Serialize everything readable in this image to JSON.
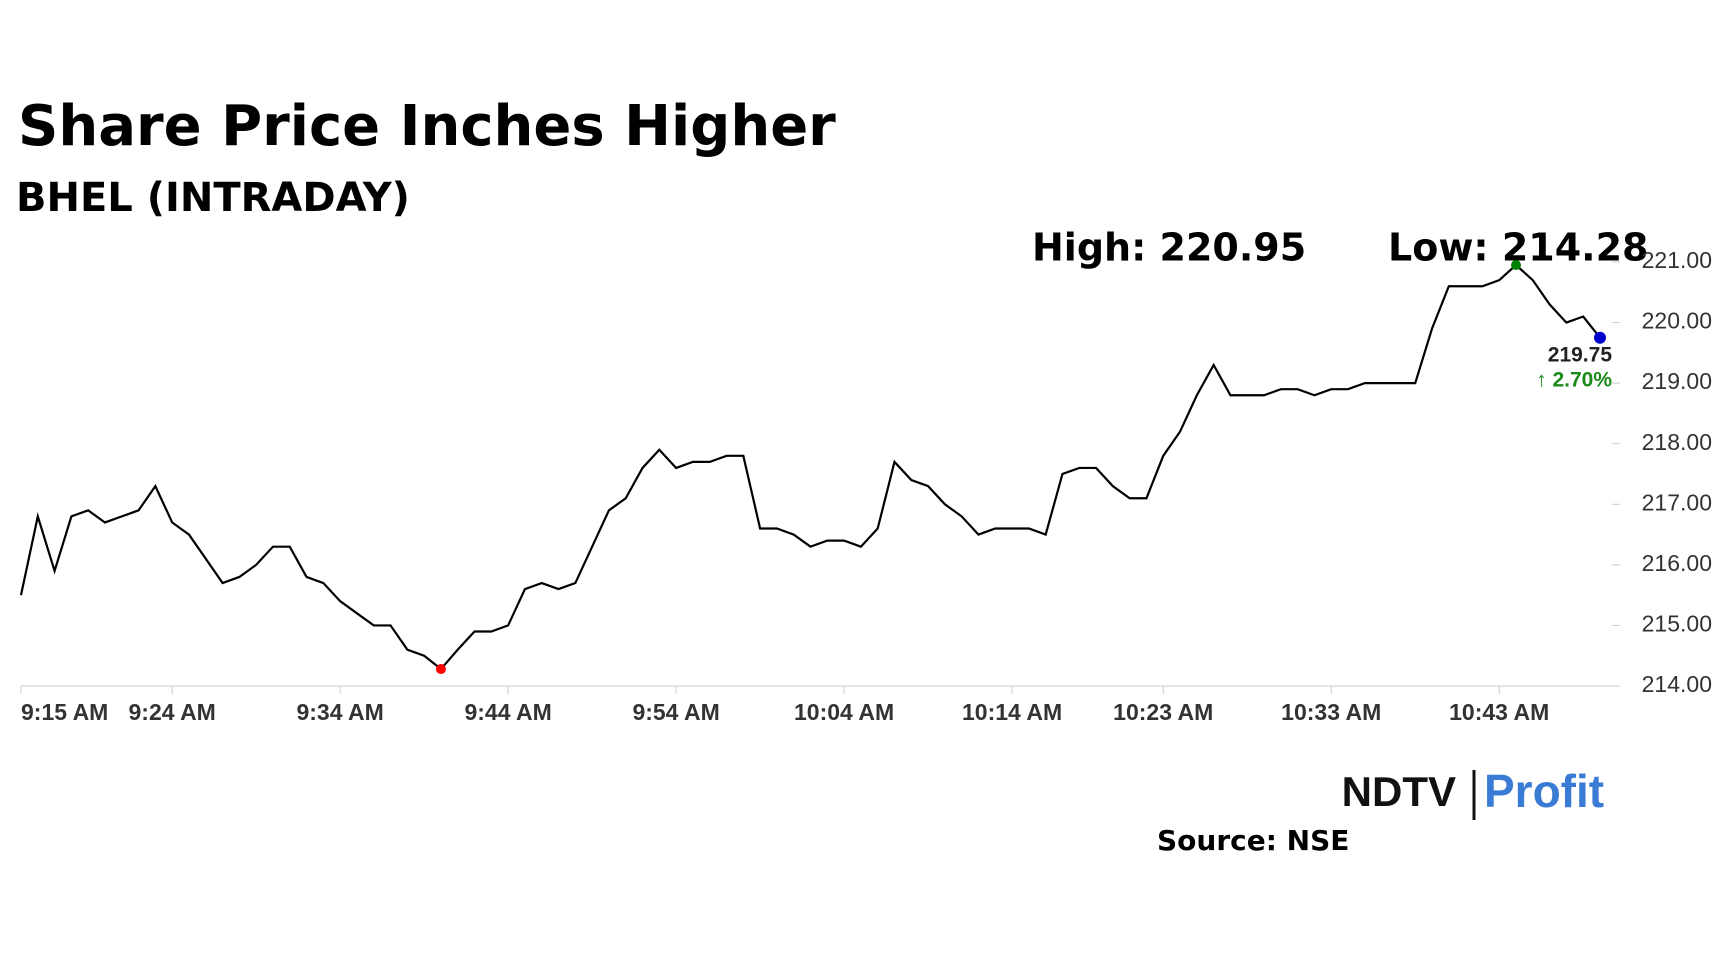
{
  "chart_data": {
    "type": "line",
    "title": "Share Price Inches Higher",
    "subtitle": "BHEL (INTRADAY)",
    "annotations": {
      "high": "High: 220.95",
      "low": "Low: 214.28",
      "last": "219.75",
      "change": "↑ 2.70%"
    },
    "brand": {
      "left": "NDTV",
      "right": "Profit"
    },
    "source": "Source: NSE",
    "x": [
      "9:15 AM",
      "9:16 AM",
      "9:17 AM",
      "9:18 AM",
      "9:19 AM",
      "9:20 AM",
      "9:21 AM",
      "9:22 AM",
      "9:23 AM",
      "9:24 AM",
      "9:25 AM",
      "9:26 AM",
      "9:27 AM",
      "9:28 AM",
      "9:29 AM",
      "9:30 AM",
      "9:31 AM",
      "9:32 AM",
      "9:33 AM",
      "9:34 AM",
      "9:35 AM",
      "9:36 AM",
      "9:37 AM",
      "9:38 AM",
      "9:39 AM",
      "9:40 AM",
      "9:41 AM",
      "9:42 AM",
      "9:43 AM",
      "9:44 AM",
      "9:45 AM",
      "9:46 AM",
      "9:47 AM",
      "9:48 AM",
      "9:49 AM",
      "9:50 AM",
      "9:51 AM",
      "9:52 AM",
      "9:53 AM",
      "9:54 AM",
      "9:55 AM",
      "9:56 AM",
      "9:57 AM",
      "9:58 AM",
      "9:59 AM",
      "10:00 AM",
      "10:01 AM",
      "10:02 AM",
      "10:03 AM",
      "10:04 AM",
      "10:05 AM",
      "10:06 AM",
      "10:07 AM",
      "10:08 AM",
      "10:09 AM",
      "10:10 AM",
      "10:11 AM",
      "10:12 AM",
      "10:13 AM",
      "10:14 AM",
      "10:15 AM",
      "10:16 AM",
      "10:17 AM",
      "10:18 AM",
      "10:19 AM",
      "10:20 AM",
      "10:21 AM",
      "10:22 AM",
      "10:23 AM",
      "10:24 AM",
      "10:25 AM",
      "10:26 AM",
      "10:27 AM",
      "10:28 AM",
      "10:29 AM",
      "10:30 AM",
      "10:31 AM",
      "10:32 AM",
      "10:33 AM",
      "10:34 AM",
      "10:35 AM",
      "10:36 AM",
      "10:37 AM",
      "10:38 AM",
      "10:39 AM",
      "10:40 AM",
      "10:41 AM",
      "10:42 AM",
      "10:43 AM",
      "10:44 AM",
      "10:45 AM",
      "10:46 AM",
      "10:47 AM",
      "10:48 AM",
      "10:49 AM"
    ],
    "series": [
      {
        "name": "BHEL",
        "color": "#000000",
        "values": [
          215.5,
          216.8,
          215.9,
          216.8,
          216.9,
          216.7,
          216.8,
          216.9,
          217.3,
          216.7,
          216.5,
          216.1,
          215.7,
          215.8,
          216.0,
          216.3,
          216.3,
          215.8,
          215.7,
          215.4,
          215.2,
          215.0,
          215.0,
          214.6,
          214.5,
          214.28,
          214.6,
          214.9,
          214.9,
          215.0,
          215.6,
          215.7,
          215.6,
          215.7,
          216.3,
          216.9,
          217.1,
          217.6,
          217.9,
          217.6,
          217.7,
          217.7,
          217.8,
          217.8,
          216.6,
          216.6,
          216.5,
          216.3,
          216.4,
          216.4,
          216.3,
          216.6,
          217.7,
          217.4,
          217.3,
          217.0,
          216.8,
          216.5,
          216.6,
          216.6,
          216.6,
          216.5,
          217.5,
          217.6,
          217.6,
          217.3,
          217.1,
          217.1,
          217.8,
          218.2,
          218.8,
          219.3,
          218.8,
          218.8,
          218.8,
          218.9,
          218.9,
          218.8,
          218.9,
          218.9,
          219.0,
          219.0,
          219.0,
          219.0,
          219.9,
          220.6,
          220.6,
          220.6,
          220.7,
          220.95,
          220.7,
          220.3,
          220.0,
          220.1,
          219.75
        ]
      }
    ],
    "markers": {
      "low_color": "#ff0000",
      "high_color": "#008000",
      "last_color": "#0000cc"
    },
    "xticks": [
      "9:15 AM",
      "9:24 AM",
      "9:34 AM",
      "9:44 AM",
      "9:54 AM",
      "10:04 AM",
      "10:14 AM",
      "10:23 AM",
      "10:33 AM",
      "10:43 AM"
    ],
    "ylim": [
      214,
      221
    ],
    "yticks": [
      {
        "value": 214,
        "label": "214.00"
      },
      {
        "value": 215,
        "label": "215.00"
      },
      {
        "value": 216,
        "label": "216.00"
      },
      {
        "value": 217,
        "label": "217.00"
      },
      {
        "value": 218,
        "label": "218.00"
      },
      {
        "value": 219,
        "label": "219.00"
      },
      {
        "value": 220,
        "label": "220.00"
      },
      {
        "value": 221,
        "label": "221.00"
      }
    ]
  }
}
